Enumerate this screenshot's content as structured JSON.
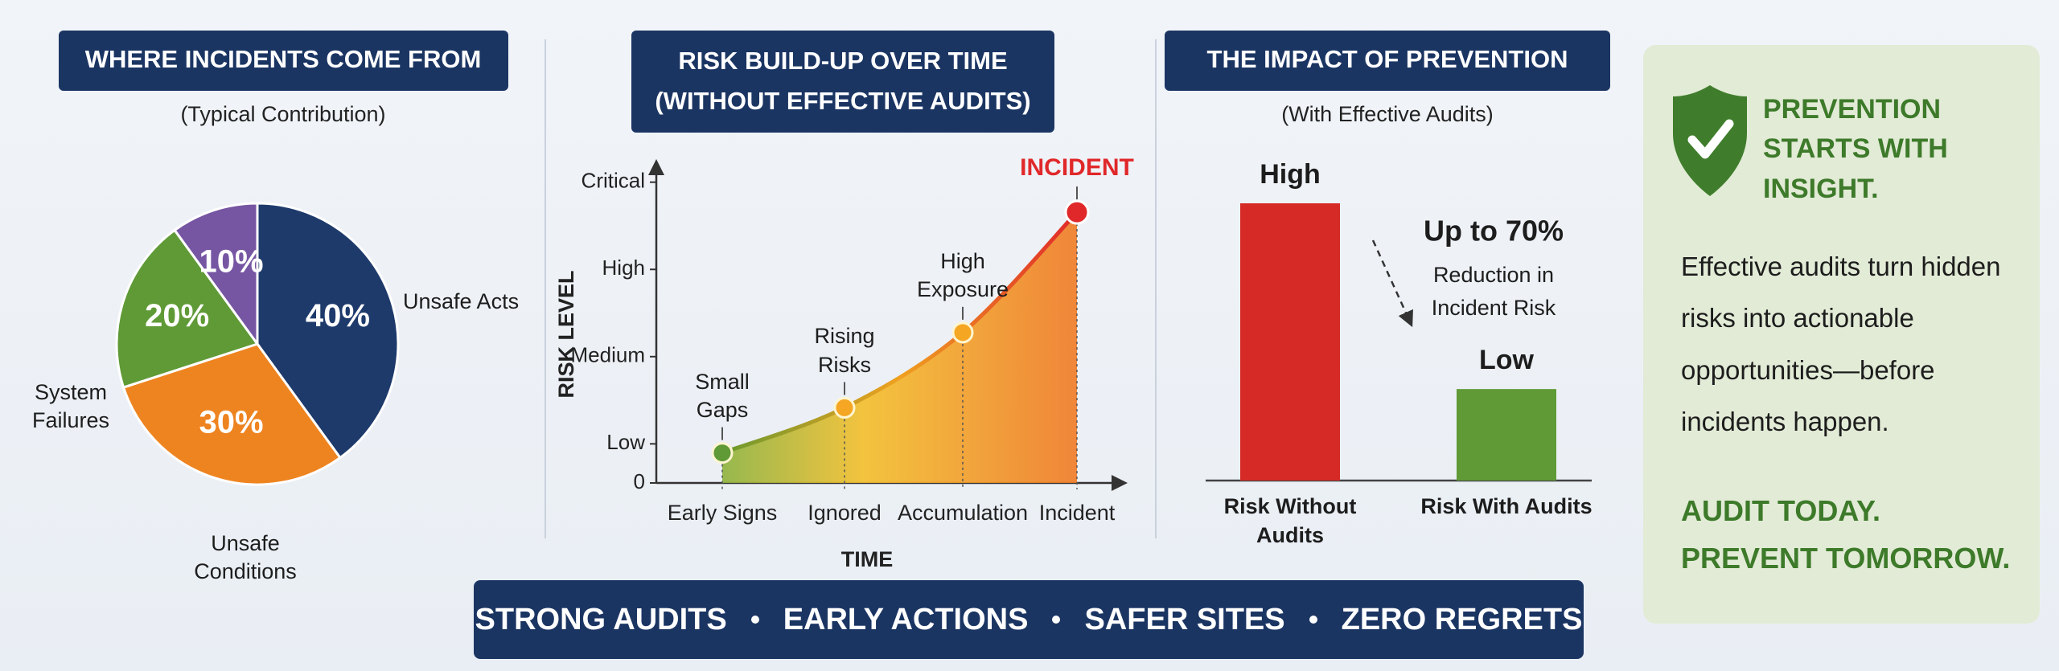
{
  "chart_data": [
    {
      "type": "pie",
      "title": "WHERE INCIDENTS COME FROM",
      "subtitle": "(Typical Contribution)",
      "categories": [
        "Unsafe Acts",
        "Unsafe Conditions",
        "System Failures",
        null
      ],
      "values": [
        40,
        30,
        20,
        10
      ],
      "value_labels": [
        "40%",
        "30%",
        "20%",
        "10%"
      ],
      "colors": [
        "#1d3a6b",
        "#ee8420",
        "#5f9a36",
        "#7656a3"
      ]
    },
    {
      "type": "line",
      "title": "RISK BUILD-UP OVER TIME",
      "subtitle": "(WITHOUT EFFECTIVE AUDITS)",
      "x_label": "TIME",
      "y_label": "RISK LEVEL",
      "categories": [
        "Early Signs",
        "Ignored",
        "Accumulation",
        "Incident"
      ],
      "values": [
        10,
        25,
        50,
        90
      ],
      "point_labels": [
        "Small Gaps",
        "Rising Risks",
        "High Exposure",
        "INCIDENT"
      ],
      "marker_colors": [
        "#5f9a36",
        "#f5a623",
        "#f5a623",
        "#e0282a"
      ],
      "ylim": [
        0,
        105
      ],
      "yticks": [
        0,
        {
          "value": 13,
          "label": "Low"
        },
        {
          "value": 42,
          "label": "Medium"
        },
        {
          "value": 71,
          "label": "High"
        },
        {
          "value": 100,
          "label": "Critical"
        }
      ]
    },
    {
      "type": "bar",
      "title": "THE IMPACT OF PREVENTION",
      "subtitle": "(With Effective Audits)",
      "categories": [
        "Risk Without Audits",
        "Risk With Audits"
      ],
      "values": [
        100,
        33
      ],
      "value_labels": [
        "High",
        "Low"
      ],
      "colors": [
        "#d62a27",
        "#5f9a36"
      ],
      "ylim": [
        0,
        100
      ],
      "annotation": {
        "headline": "Up to 70%",
        "text": "Reduction in Incident Risk"
      }
    }
  ],
  "insight": {
    "headline": "PREVENTION STARTS WITH INSIGHT.",
    "body": "Effective audits turn hidden risks into actionable opportunities—before incidents happen.",
    "callout": "AUDIT TODAY. PREVENT TOMORROW."
  },
  "banner": {
    "items": [
      "STRONG AUDITS",
      "EARLY ACTIONS",
      "SAFER SITES",
      "ZERO REGRETS"
    ]
  }
}
